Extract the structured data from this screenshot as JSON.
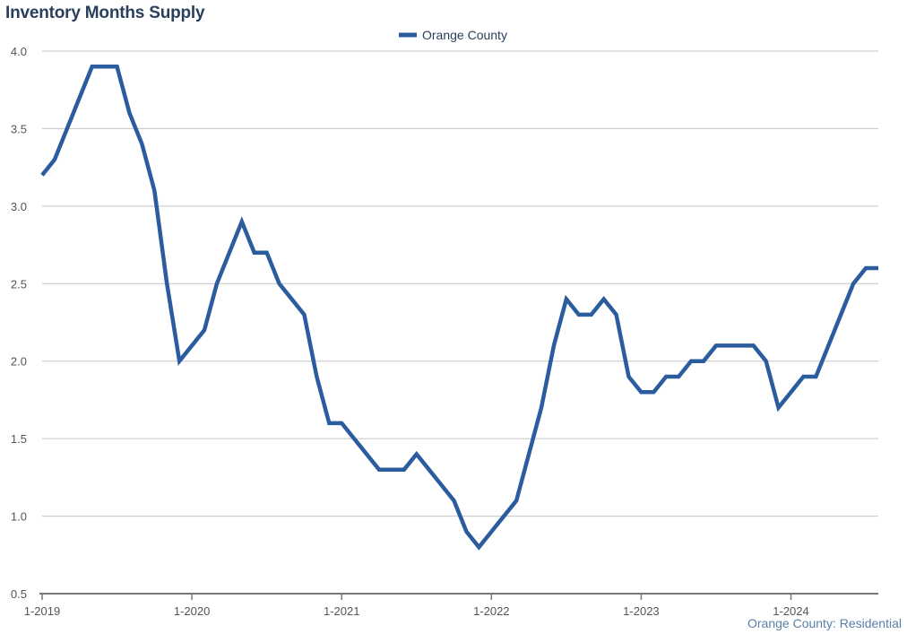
{
  "chart_data": {
    "type": "line",
    "title": "Inventory Months Supply",
    "footer": "Orange County: Residential",
    "legend_position": "top-center",
    "grid": true,
    "xlabel": "",
    "ylabel": "",
    "ylim": [
      0.5,
      4.0
    ],
    "yticks": [
      "0.5",
      "1.0",
      "1.5",
      "2.0",
      "2.5",
      "3.0",
      "3.5",
      "4.0"
    ],
    "xtick_labels": [
      "1-2019",
      "1-2020",
      "1-2021",
      "1-2022",
      "1-2023",
      "1-2024"
    ],
    "x_start": "1-2019",
    "x_end": "8-2024",
    "series": [
      {
        "name": "Orange County",
        "color": "#2b5c9e",
        "x": [
          "1-2019",
          "2-2019",
          "3-2019",
          "4-2019",
          "5-2019",
          "6-2019",
          "7-2019",
          "8-2019",
          "9-2019",
          "10-2019",
          "11-2019",
          "12-2019",
          "1-2020",
          "2-2020",
          "3-2020",
          "4-2020",
          "5-2020",
          "6-2020",
          "7-2020",
          "8-2020",
          "9-2020",
          "10-2020",
          "11-2020",
          "12-2020",
          "1-2021",
          "2-2021",
          "3-2021",
          "4-2021",
          "5-2021",
          "6-2021",
          "7-2021",
          "8-2021",
          "9-2021",
          "10-2021",
          "11-2021",
          "12-2021",
          "1-2022",
          "2-2022",
          "3-2022",
          "4-2022",
          "5-2022",
          "6-2022",
          "7-2022",
          "8-2022",
          "9-2022",
          "10-2022",
          "11-2022",
          "12-2022",
          "1-2023",
          "2-2023",
          "3-2023",
          "4-2023",
          "5-2023",
          "6-2023",
          "7-2023",
          "8-2023",
          "9-2023",
          "10-2023",
          "11-2023",
          "12-2023",
          "1-2024",
          "2-2024",
          "3-2024",
          "4-2024",
          "5-2024",
          "6-2024",
          "7-2024",
          "8-2024"
        ],
        "values": [
          3.2,
          3.3,
          3.5,
          3.7,
          3.9,
          3.9,
          3.9,
          3.6,
          3.4,
          3.1,
          2.5,
          2.0,
          2.1,
          2.2,
          2.5,
          2.7,
          2.9,
          2.7,
          2.7,
          2.5,
          2.4,
          2.3,
          1.9,
          1.6,
          1.6,
          1.5,
          1.4,
          1.3,
          1.3,
          1.3,
          1.4,
          1.3,
          1.2,
          1.1,
          0.9,
          0.8,
          0.9,
          1.0,
          1.1,
          1.4,
          1.7,
          2.1,
          2.4,
          2.3,
          2.3,
          2.4,
          2.3,
          1.9,
          1.8,
          1.8,
          1.9,
          1.9,
          2.0,
          2.0,
          2.1,
          2.1,
          2.1,
          2.1,
          2.0,
          1.7,
          1.8,
          1.9,
          1.9,
          2.1,
          2.3,
          2.5,
          2.6,
          2.6
        ]
      }
    ]
  }
}
